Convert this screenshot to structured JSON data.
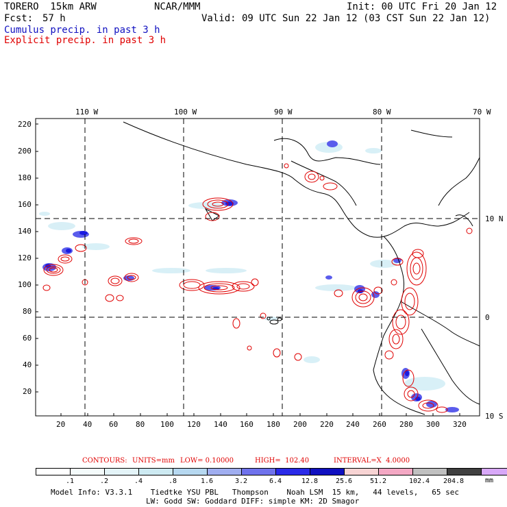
{
  "header": {
    "model": "TORERO  15km ARW",
    "org": "NCAR/MMM",
    "init": "Init: 00 UTC Fri 20 Jan 12",
    "fcst_label": "Fcst:",
    "fcst_value": "57 h",
    "valid": "Valid: 09 UTC Sun 22 Jan 12 (03 CST Sun 22 Jan 12)",
    "cumulus": "Cumulus precip. in past 3 h",
    "explicit": "Explicit precip. in past 3 h"
  },
  "colors": {
    "cumulus": "#1010c0",
    "explicit": "#e00000",
    "contour": "#e00000"
  },
  "map": {
    "lon_labels": [
      "110 W",
      "100 W",
      "90 W",
      "80 W",
      "70 W"
    ],
    "lat_labels": [
      "10 N",
      "0",
      "10 S"
    ],
    "y_ticks": [
      "220",
      "200",
      "180",
      "160",
      "140",
      "120",
      "100",
      "80",
      "60",
      "40",
      "20"
    ],
    "x_ticks": [
      "20",
      "40",
      "60",
      "80",
      "100",
      "120",
      "140",
      "160",
      "180",
      "200",
      "220",
      "240",
      "260",
      "280",
      "300",
      "320"
    ]
  },
  "contours": {
    "label": "CONTOURS:",
    "units": "UNITS=mm",
    "low": "LOW= 0.10000",
    "high": "HIGH=  102.40",
    "interval": "INTERVAL=X  4.0000"
  },
  "legend": {
    "unit": "mm",
    "colors": [
      "#ffffff",
      "#f4fbfb",
      "#e4f4f8",
      "#cdeaf2",
      "#b6d8f0",
      "#a0aef0",
      "#6f72ec",
      "#2a2ae8",
      "#1010c0",
      "#f8d4d4",
      "#f4a8c4",
      "#c0c0c0",
      "#404040",
      "#d8a8f8"
    ],
    "labels": [
      ".1",
      ".2",
      ".4",
      ".8",
      "1.6",
      "3.2",
      "6.4",
      "12.8",
      "25.6",
      "51.2",
      "102.4",
      "204.8"
    ]
  },
  "footer": {
    "line1": "Model Info: V3.3.1    Tiedtke YSU PBL   Thompson    Noah LSM  15 km,   44 levels,   65 sec",
    "line2": "LW: Godd SW: Goddard DIFF: simple KM: 2D Smagor"
  }
}
